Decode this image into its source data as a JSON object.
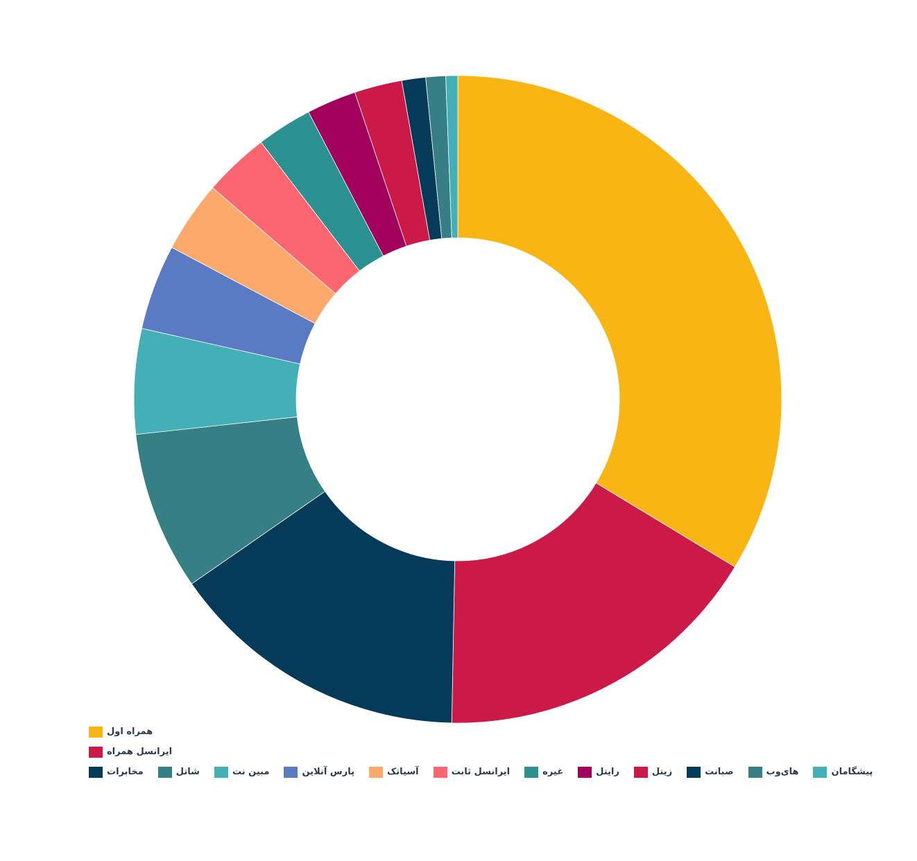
{
  "chart_data": {
    "type": "pie",
    "variant": "donut",
    "title": "",
    "legend_position": "bottom-left",
    "slices": [
      {
        "label": "همراه اول",
        "value": 34.0,
        "color": "#F8B514"
      },
      {
        "label": "ایرانسل همراه",
        "value": 16.8,
        "color": "#CC1A48"
      },
      {
        "label": "مخابرات",
        "value": 15.2,
        "color": "#053B59"
      },
      {
        "label": "شاتل",
        "value": 8.0,
        "color": "#367F84"
      },
      {
        "label": "مبین نت",
        "value": 5.3,
        "color": "#43AFB7"
      },
      {
        "label": "پارس آنلاین",
        "value": 4.3,
        "color": "#5A7BC4"
      },
      {
        "label": "آسیاتک",
        "value": 3.6,
        "color": "#FDA96C"
      },
      {
        "label": "ایرانسل ثابت",
        "value": 3.3,
        "color": "#FC6670"
      },
      {
        "label": "غیره",
        "value": 2.8,
        "color": "#2C9191"
      },
      {
        "label": "رایتل",
        "value": 2.5,
        "color": "#A1005C"
      },
      {
        "label": "زیتل",
        "value": 2.4,
        "color": "#CC1A48"
      },
      {
        "label": "صبانت",
        "value": 1.2,
        "color": "#053B59"
      },
      {
        "label": "های‌وب",
        "value": 1.0,
        "color": "#367F84"
      },
      {
        "label": "پیشگامان",
        "value": 0.6,
        "color": "#43AFB7"
      }
    ]
  }
}
